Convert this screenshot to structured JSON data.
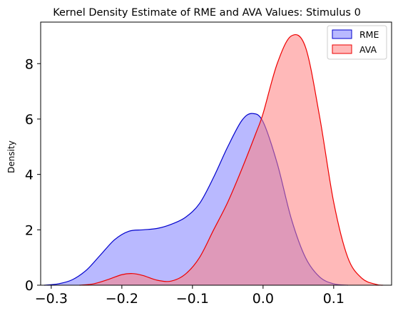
{
  "chart_data": {
    "type": "area",
    "title": "Kernel Density Estimate of RME and AVA Values: Stimulus 0",
    "xlabel": "",
    "ylabel": "Density",
    "xlim": [
      -0.315,
      0.182
    ],
    "ylim": [
      0,
      9.5
    ],
    "x_ticks": [
      -0.3,
      -0.2,
      -0.1,
      0.0,
      0.1
    ],
    "x_tick_labels": [
      "−0.3",
      "−0.2",
      "−0.1",
      "0.0",
      "0.1"
    ],
    "y_ticks": [
      0,
      2,
      4,
      6,
      8
    ],
    "y_tick_labels": [
      "0",
      "2",
      "4",
      "6",
      "8"
    ],
    "grid": false,
    "legend_position": "top-right",
    "series": [
      {
        "name": "RME",
        "fill": "#7f7fff",
        "stroke": "#0000cc",
        "x": [
          -0.31,
          -0.29,
          -0.27,
          -0.25,
          -0.23,
          -0.21,
          -0.19,
          -0.17,
          -0.15,
          -0.13,
          -0.11,
          -0.09,
          -0.07,
          -0.05,
          -0.03,
          -0.015,
          0.0,
          0.02,
          0.04,
          0.06,
          0.08,
          0.1,
          0.12
        ],
        "y": [
          0.0,
          0.05,
          0.2,
          0.55,
          1.1,
          1.65,
          1.95,
          2.0,
          2.05,
          2.2,
          2.45,
          2.95,
          3.9,
          5.0,
          5.95,
          6.2,
          5.9,
          4.4,
          2.4,
          1.0,
          0.3,
          0.05,
          0.0
        ]
      },
      {
        "name": "AVA",
        "fill": "#ff7f7f",
        "stroke": "#ee0000",
        "x": [
          -0.26,
          -0.24,
          -0.22,
          -0.2,
          -0.185,
          -0.17,
          -0.15,
          -0.13,
          -0.11,
          -0.09,
          -0.07,
          -0.05,
          -0.03,
          -0.01,
          0.0,
          0.02,
          0.04,
          0.06,
          0.08,
          0.1,
          0.12,
          0.14,
          0.16,
          0.17
        ],
        "y": [
          0.0,
          0.05,
          0.2,
          0.38,
          0.42,
          0.35,
          0.18,
          0.15,
          0.4,
          1.0,
          2.0,
          3.0,
          4.2,
          5.5,
          6.2,
          8.0,
          9.0,
          8.6,
          6.1,
          3.0,
          1.0,
          0.25,
          0.03,
          0.0
        ]
      }
    ]
  }
}
